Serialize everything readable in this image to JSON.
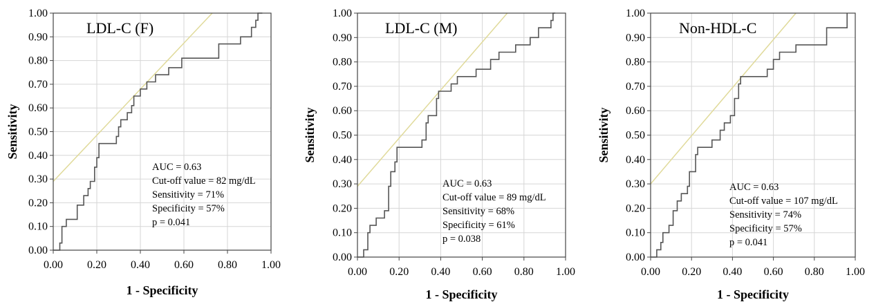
{
  "colors": {
    "roc": "#555555",
    "reference": "#e0da9a",
    "grid": "#d6d6d6",
    "frame": "#444444"
  },
  "chart_data": [
    {
      "type": "line",
      "title": "LDL-C (F)",
      "xlabel": "1 - Specificity",
      "ylabel": "Sensitivity",
      "xlim": [
        0,
        1
      ],
      "ylim": [
        0,
        1
      ],
      "x_ticks": [
        "0.00",
        "0.20",
        "0.40",
        "0.60",
        "0.80",
        "1.00"
      ],
      "y_ticks": [
        "0.00",
        "0.10",
        "0.20",
        "0.30",
        "0.40",
        "0.50",
        "0.60",
        "0.70",
        "0.80",
        "0.90",
        "1.00"
      ],
      "grid": true,
      "stats": [
        "AUC = 0.63",
        "Cut-off value = 82 mg/dL",
        "Sensitivity = 71%",
        "Specificity = 57%",
        "p = 0.041"
      ],
      "reference_line": [
        [
          0,
          0.29
        ],
        [
          0.73,
          1.0
        ]
      ],
      "roc": [
        [
          0,
          0
        ],
        [
          0.03,
          0
        ],
        [
          0.03,
          0.03
        ],
        [
          0.04,
          0.03
        ],
        [
          0.04,
          0.1
        ],
        [
          0.06,
          0.1
        ],
        [
          0.06,
          0.13
        ],
        [
          0.11,
          0.13
        ],
        [
          0.11,
          0.19
        ],
        [
          0.14,
          0.19
        ],
        [
          0.14,
          0.23
        ],
        [
          0.16,
          0.23
        ],
        [
          0.16,
          0.26
        ],
        [
          0.17,
          0.26
        ],
        [
          0.17,
          0.29
        ],
        [
          0.19,
          0.29
        ],
        [
          0.19,
          0.35
        ],
        [
          0.2,
          0.35
        ],
        [
          0.2,
          0.39
        ],
        [
          0.21,
          0.39
        ],
        [
          0.21,
          0.45
        ],
        [
          0.29,
          0.45
        ],
        [
          0.29,
          0.48
        ],
        [
          0.3,
          0.48
        ],
        [
          0.3,
          0.52
        ],
        [
          0.31,
          0.52
        ],
        [
          0.31,
          0.55
        ],
        [
          0.34,
          0.55
        ],
        [
          0.34,
          0.58
        ],
        [
          0.36,
          0.58
        ],
        [
          0.36,
          0.61
        ],
        [
          0.37,
          0.61
        ],
        [
          0.37,
          0.65
        ],
        [
          0.4,
          0.65
        ],
        [
          0.4,
          0.68
        ],
        [
          0.43,
          0.68
        ],
        [
          0.43,
          0.71
        ],
        [
          0.47,
          0.71
        ],
        [
          0.47,
          0.74
        ],
        [
          0.53,
          0.74
        ],
        [
          0.53,
          0.77
        ],
        [
          0.59,
          0.77
        ],
        [
          0.59,
          0.81
        ],
        [
          0.76,
          0.81
        ],
        [
          0.76,
          0.87
        ],
        [
          0.86,
          0.87
        ],
        [
          0.86,
          0.9
        ],
        [
          0.91,
          0.9
        ],
        [
          0.91,
          0.94
        ],
        [
          0.93,
          0.94
        ],
        [
          0.93,
          0.97
        ],
        [
          0.94,
          0.97
        ],
        [
          0.94,
          1.0
        ],
        [
          0.96,
          1.0
        ]
      ]
    },
    {
      "type": "line",
      "title": "LDL-C (M)",
      "xlabel": "1 - Specificity",
      "ylabel": "Sensitivity",
      "xlim": [
        0,
        1
      ],
      "ylim": [
        0,
        1
      ],
      "x_ticks": [
        "0.00",
        "0.20",
        "0.40",
        "0.60",
        "0.80",
        "1.00"
      ],
      "y_ticks": [
        "0.00",
        "0.10",
        "0.20",
        "0.30",
        "0.40",
        "0.50",
        "0.60",
        "0.70",
        "0.80",
        "0.90",
        "1.00"
      ],
      "grid": true,
      "stats": [
        "AUC = 0.63",
        "Cut-off value = 89 mg/dL",
        "Sensitivity = 68%",
        "Specificity = 61%",
        "p = 0.038"
      ],
      "reference_line": [
        [
          0,
          0.29
        ],
        [
          0.72,
          1.0
        ]
      ],
      "roc": [
        [
          0,
          0
        ],
        [
          0.03,
          0
        ],
        [
          0.03,
          0.03
        ],
        [
          0.05,
          0.03
        ],
        [
          0.05,
          0.1
        ],
        [
          0.06,
          0.1
        ],
        [
          0.06,
          0.13
        ],
        [
          0.09,
          0.13
        ],
        [
          0.09,
          0.16
        ],
        [
          0.13,
          0.16
        ],
        [
          0.13,
          0.19
        ],
        [
          0.15,
          0.19
        ],
        [
          0.15,
          0.29
        ],
        [
          0.16,
          0.29
        ],
        [
          0.16,
          0.35
        ],
        [
          0.18,
          0.35
        ],
        [
          0.18,
          0.39
        ],
        [
          0.19,
          0.39
        ],
        [
          0.19,
          0.45
        ],
        [
          0.31,
          0.45
        ],
        [
          0.31,
          0.48
        ],
        [
          0.33,
          0.48
        ],
        [
          0.33,
          0.55
        ],
        [
          0.34,
          0.55
        ],
        [
          0.34,
          0.58
        ],
        [
          0.38,
          0.58
        ],
        [
          0.38,
          0.65
        ],
        [
          0.39,
          0.65
        ],
        [
          0.39,
          0.68
        ],
        [
          0.45,
          0.68
        ],
        [
          0.45,
          0.71
        ],
        [
          0.48,
          0.71
        ],
        [
          0.48,
          0.74
        ],
        [
          0.57,
          0.74
        ],
        [
          0.57,
          0.77
        ],
        [
          0.64,
          0.77
        ],
        [
          0.64,
          0.81
        ],
        [
          0.68,
          0.81
        ],
        [
          0.68,
          0.84
        ],
        [
          0.76,
          0.84
        ],
        [
          0.76,
          0.87
        ],
        [
          0.83,
          0.87
        ],
        [
          0.83,
          0.9
        ],
        [
          0.87,
          0.9
        ],
        [
          0.87,
          0.94
        ],
        [
          0.93,
          0.94
        ],
        [
          0.93,
          0.97
        ],
        [
          0.94,
          0.97
        ],
        [
          0.94,
          1.0
        ],
        [
          0.95,
          1.0
        ]
      ]
    },
    {
      "type": "line",
      "title": "Non-HDL-C",
      "xlabel": "1 - Specificity",
      "ylabel": "Sensitivity",
      "xlim": [
        0,
        1
      ],
      "ylim": [
        0,
        1
      ],
      "x_ticks": [
        "0.00",
        "0.20",
        "0.40",
        "0.60",
        "0.80",
        "1.00"
      ],
      "y_ticks": [
        "0.00",
        "0.10",
        "0.20",
        "0.30",
        "0.40",
        "0.50",
        "0.60",
        "0.70",
        "0.80",
        "0.90",
        "1.00"
      ],
      "grid": true,
      "stats": [
        "AUC = 0.63",
        "Cut-off value = 107 mg/dL",
        "Sensitivity = 74%",
        "Specificity = 57%",
        "p = 0.041"
      ],
      "reference_line": [
        [
          0,
          0.3
        ],
        [
          0.71,
          1.0
        ]
      ],
      "roc": [
        [
          0,
          0
        ],
        [
          0.03,
          0
        ],
        [
          0.03,
          0.03
        ],
        [
          0.05,
          0.03
        ],
        [
          0.05,
          0.06
        ],
        [
          0.06,
          0.06
        ],
        [
          0.06,
          0.1
        ],
        [
          0.09,
          0.1
        ],
        [
          0.09,
          0.13
        ],
        [
          0.11,
          0.13
        ],
        [
          0.11,
          0.19
        ],
        [
          0.13,
          0.19
        ],
        [
          0.13,
          0.23
        ],
        [
          0.15,
          0.23
        ],
        [
          0.15,
          0.26
        ],
        [
          0.18,
          0.26
        ],
        [
          0.18,
          0.29
        ],
        [
          0.19,
          0.29
        ],
        [
          0.19,
          0.35
        ],
        [
          0.22,
          0.35
        ],
        [
          0.22,
          0.42
        ],
        [
          0.23,
          0.42
        ],
        [
          0.23,
          0.45
        ],
        [
          0.3,
          0.45
        ],
        [
          0.3,
          0.48
        ],
        [
          0.34,
          0.48
        ],
        [
          0.34,
          0.52
        ],
        [
          0.36,
          0.52
        ],
        [
          0.36,
          0.55
        ],
        [
          0.39,
          0.55
        ],
        [
          0.39,
          0.58
        ],
        [
          0.41,
          0.58
        ],
        [
          0.41,
          0.65
        ],
        [
          0.43,
          0.65
        ],
        [
          0.43,
          0.71
        ],
        [
          0.44,
          0.71
        ],
        [
          0.44,
          0.74
        ],
        [
          0.57,
          0.74
        ],
        [
          0.57,
          0.77
        ],
        [
          0.6,
          0.77
        ],
        [
          0.6,
          0.81
        ],
        [
          0.63,
          0.81
        ],
        [
          0.63,
          0.84
        ],
        [
          0.71,
          0.84
        ],
        [
          0.71,
          0.87
        ],
        [
          0.86,
          0.87
        ],
        [
          0.86,
          0.94
        ],
        [
          0.96,
          0.94
        ],
        [
          0.96,
          1.0
        ]
      ]
    }
  ]
}
